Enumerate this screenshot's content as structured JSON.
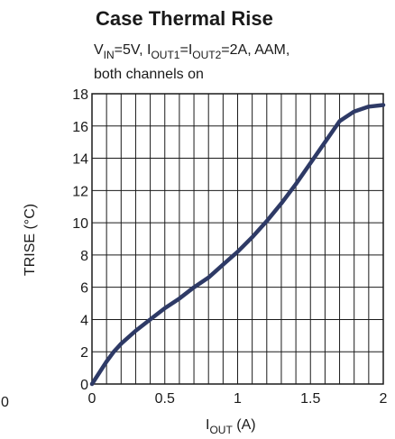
{
  "chart_data": {
    "type": "line",
    "title": "Case Thermal Rise",
    "subtitle": {
      "line1": {
        "p1": "V",
        "s1": "IN",
        "p2": "=5V, I",
        "s2": "OUT1",
        "p3": "=I",
        "s3": "OUT2",
        "p4": "=2A, AAM,"
      },
      "line2": "both channels on"
    },
    "xlabel": {
      "main": "I",
      "sub": "OUT",
      "rest": " (A)"
    },
    "ylabel": "TRISE (°C)",
    "stray_tick": "0",
    "xlim": [
      0,
      2
    ],
    "ylim": [
      0,
      18
    ],
    "xticks": [
      0,
      0.5,
      1,
      1.5,
      2
    ],
    "xtick_labels": [
      "0",
      "0.5",
      "1",
      "1.5",
      "2"
    ],
    "yticks": [
      0,
      2,
      4,
      6,
      8,
      10,
      12,
      14,
      16,
      18
    ],
    "ytick_labels": [
      "0",
      "2",
      "4",
      "6",
      "8",
      "10",
      "12",
      "14",
      "16",
      "18"
    ],
    "grid": true,
    "grid_x_step": 0.1,
    "grid_y_step": 2,
    "series": [
      {
        "color": "#2e3a66",
        "x": [
          0,
          0.05,
          0.1,
          0.15,
          0.2,
          0.3,
          0.4,
          0.5,
          0.6,
          0.7,
          0.8,
          0.9,
          1.0,
          1.1,
          1.2,
          1.3,
          1.4,
          1.5,
          1.6,
          1.7,
          1.8,
          1.9,
          2.0
        ],
        "y": [
          0,
          0.7,
          1.4,
          2.0,
          2.5,
          3.3,
          4.0,
          4.7,
          5.3,
          6.0,
          6.6,
          7.4,
          8.2,
          9.1,
          10.1,
          11.2,
          12.4,
          13.7,
          15.0,
          16.3,
          16.9,
          17.2,
          17.3
        ]
      }
    ]
  }
}
